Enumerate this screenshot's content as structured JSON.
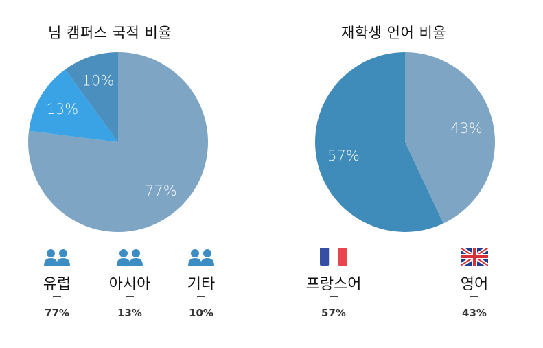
{
  "chart_data": [
    {
      "type": "pie",
      "title": "님 캠퍼스 국적 비율",
      "categories": [
        "유럽",
        "아시아",
        "기타"
      ],
      "values": [
        77,
        13,
        10
      ],
      "slice_labels": [
        "77%",
        "13%",
        "10%"
      ],
      "colors": [
        "#7fa5c4",
        "#3aa3e6",
        "#4a8fbe"
      ],
      "legend": [
        {
          "label": "유럽",
          "value": "77%",
          "icon": "people-icon"
        },
        {
          "label": "아시아",
          "value": "13%",
          "icon": "people-icon"
        },
        {
          "label": "기타",
          "value": "10%",
          "icon": "people-icon"
        }
      ]
    },
    {
      "type": "pie",
      "title": "재학생 언어 비율",
      "categories": [
        "영어",
        "프랑스어"
      ],
      "values": [
        43,
        57
      ],
      "slice_labels": [
        "43%",
        "57%"
      ],
      "colors": [
        "#7fa5c4",
        "#3f8cbb"
      ],
      "legend": [
        {
          "label": "프랑스어",
          "value": "57%",
          "icon": "france-flag-icon"
        },
        {
          "label": "영어",
          "value": "43%",
          "icon": "uk-flag-icon"
        }
      ]
    }
  ],
  "icon_colors": {
    "people": "#3b8dc4",
    "france_blue": "#3550a3",
    "france_red": "#e8454f",
    "uk_blue": "#1f3d8c",
    "uk_red": "#d6303b"
  }
}
